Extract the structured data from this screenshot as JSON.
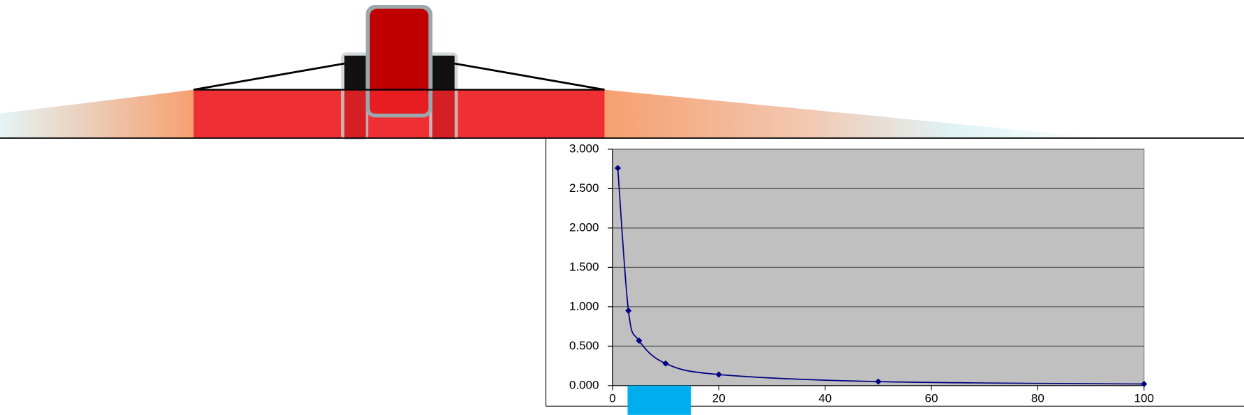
{
  "chart_data": {
    "type": "scatter",
    "x": [
      1,
      3,
      5,
      10,
      20,
      50,
      100
    ],
    "series": [
      {
        "color": "#000080",
        "values": [
          2.76,
          0.95,
          0.57,
          0.28,
          0.14,
          0.05,
          0.02
        ]
      }
    ],
    "xlim": [
      0,
      100
    ],
    "xticks": [
      0,
      20,
      40,
      60,
      80,
      100
    ],
    "ylim": [
      0,
      3
    ],
    "yticks": [
      {
        "value": 0,
        "label": "0.000"
      },
      {
        "value": 0.5,
        "label": "0.500"
      },
      {
        "value": 1,
        "label": "1.000"
      },
      {
        "value": 1.5,
        "label": "1.500"
      },
      {
        "value": 2,
        "label": "2.000"
      },
      {
        "value": 2.5,
        "label": "2.500"
      },
      {
        "value": 3,
        "label": "3.000"
      }
    ],
    "grid": true,
    "smooth": true
  }
}
